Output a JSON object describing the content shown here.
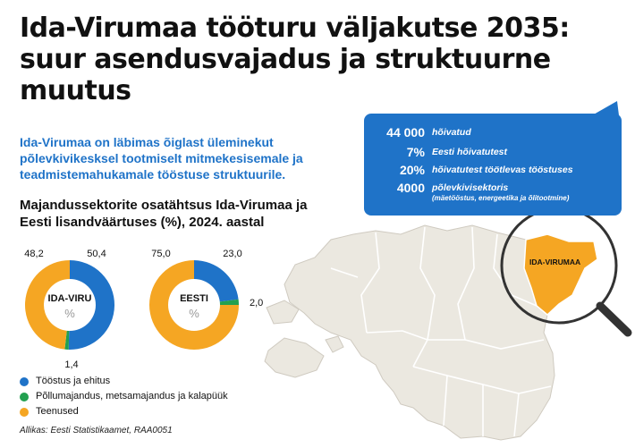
{
  "title": "Ida-Virumaa tööturu väljakutse 2035: suur asendusvajadus ja struktuurne muutus",
  "intro": "Ida-Virumaa on läbimas õiglast üleminekut põlevkivikesksel tootmiselt mitmekesisemale ja teadmistemahukamale tööstuse struktuurile.",
  "subheading": "Majandussektorite osatähtsus Ida-Virumaa ja Eesti lisandväärtuses (%), 2024. aastal",
  "callout": {
    "rows": [
      {
        "value": "44 000",
        "label": "hõivatud"
      },
      {
        "value": "7%",
        "label": "Eesti hõivatutest"
      },
      {
        "value": "20%",
        "label": "hõivatutest töötlevas tööstuses"
      },
      {
        "value": "4000",
        "label": "põlevkivisektoris",
        "sublabel": "(mäetööstus, energeetika ja õlitootmine)"
      }
    ]
  },
  "map": {
    "region_label": "IDA-VIRUMAA",
    "region_color": "#f5a623",
    "land_color": "#ebe8e0",
    "border_color": "#ffffff"
  },
  "colors": {
    "industry": "#1f73c8",
    "agriculture": "#23a050",
    "services": "#f5a623"
  },
  "chart_data": [
    {
      "type": "pie",
      "center_label": "IDA-VIRU",
      "unit_label": "%",
      "slices": [
        {
          "category": "Tööstus ja ehitus",
          "value": 50.4,
          "label": "50,4",
          "color": "#1f73c8"
        },
        {
          "category": "Põllumajandus, metsamajandus ja kalapüük",
          "value": 1.4,
          "label": "1,4",
          "color": "#23a050"
        },
        {
          "category": "Teenused",
          "value": 48.2,
          "label": "48,2",
          "color": "#f5a623"
        }
      ]
    },
    {
      "type": "pie",
      "center_label": "EESTI",
      "unit_label": "%",
      "slices": [
        {
          "category": "Tööstus ja ehitus",
          "value": 23.0,
          "label": "23,0",
          "color": "#1f73c8"
        },
        {
          "category": "Põllumajandus, metsamajandus ja kalapüük",
          "value": 2.0,
          "label": "2,0",
          "color": "#23a050"
        },
        {
          "category": "Teenused",
          "value": 75.0,
          "label": "75,0",
          "color": "#f5a623"
        }
      ]
    }
  ],
  "legend": [
    {
      "label": "Tööstus ja ehitus",
      "color": "#1f73c8"
    },
    {
      "label": "Põllumajandus, metsamajandus ja kalapüük",
      "color": "#23a050"
    },
    {
      "label": "Teenused",
      "color": "#f5a623"
    }
  ],
  "source": "Allikas: Eesti Statistikaamet, RAA0051"
}
